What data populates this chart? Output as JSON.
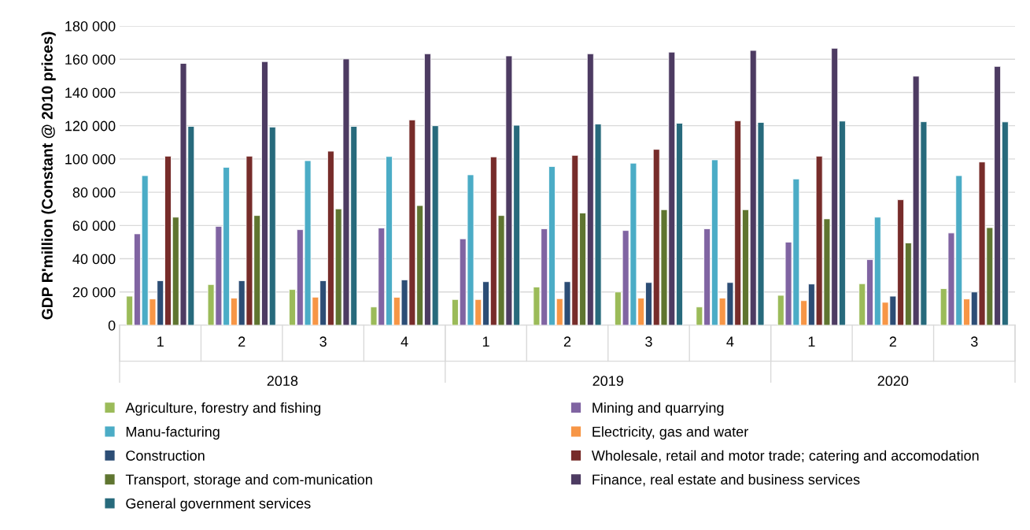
{
  "chart_data": {
    "type": "bar",
    "ylabel": "GDP R'million (Constant @ 2010 prices)",
    "categories": [
      "1",
      "2",
      "3",
      "4",
      "1",
      "2",
      "3",
      "4",
      "1",
      "2",
      "3"
    ],
    "annotations": [
      "2018",
      "2019",
      "2020"
    ],
    "series": [
      {
        "name": "Agriculture, forestry and fishing",
        "color": "#9bbb59",
        "values": [
          17500,
          24500,
          21500,
          11000,
          15500,
          23000,
          20000,
          11000,
          18000,
          25000,
          22000
        ]
      },
      {
        "name": "Mining and quarrying",
        "color": "#8064a2",
        "values": [
          55000,
          59500,
          57500,
          58500,
          52000,
          58000,
          57000,
          58000,
          50000,
          39500,
          55500
        ]
      },
      {
        "name": "Manu-facturing",
        "color": "#4bacc6",
        "values": [
          90000,
          95000,
          99000,
          101500,
          90500,
          95500,
          97500,
          99500,
          88000,
          65000,
          90000
        ]
      },
      {
        "name": "Electricity, gas and water",
        "color": "#f79646",
        "values": [
          15800,
          16300,
          16900,
          16800,
          15500,
          16000,
          16300,
          16300,
          14800,
          13800,
          15800
        ]
      },
      {
        "name": "Construction",
        "color": "#2c4d75",
        "values": [
          26800,
          26800,
          26800,
          27300,
          26200,
          26200,
          25700,
          25700,
          24800,
          17500,
          20000
        ]
      },
      {
        "name": "Wholesale, retail and motor trade; catering and accomodation",
        "color": "#772c2a",
        "values": [
          101700,
          101700,
          104700,
          123500,
          101300,
          102200,
          105800,
          123000,
          101700,
          75500,
          98200
        ]
      },
      {
        "name": "Transport, storage and com-munication",
        "color": "#5f7530",
        "values": [
          65000,
          66000,
          70000,
          72000,
          66000,
          67500,
          69500,
          69500,
          64000,
          49500,
          58700
        ]
      },
      {
        "name": "Finance, real estate and business services",
        "color": "#4d3b62",
        "values": [
          157500,
          158600,
          160200,
          163300,
          162000,
          163300,
          164300,
          165300,
          166600,
          149800,
          155700
        ]
      },
      {
        "name": "General government services",
        "color": "#276a7c",
        "values": [
          119600,
          119200,
          119600,
          120000,
          120300,
          121000,
          121500,
          122000,
          122800,
          122400,
          122300
        ]
      }
    ],
    "ylim": [
      0,
      180000
    ],
    "yticks": [
      0,
      {
        "value": 20000,
        "label": "20 000"
      },
      {
        "value": 40000,
        "label": "40 000"
      },
      {
        "value": 60000,
        "label": "60 000"
      },
      {
        "value": 80000,
        "label": "80 000"
      },
      {
        "value": 100000,
        "label": "100 000"
      },
      {
        "value": 120000,
        "label": "120 000"
      },
      {
        "value": 140000,
        "label": "140 000"
      },
      {
        "value": 160000,
        "label": "160 000"
      },
      {
        "value": 180000,
        "label": "180 000"
      }
    ],
    "grid": "y",
    "legend": "bottom"
  }
}
